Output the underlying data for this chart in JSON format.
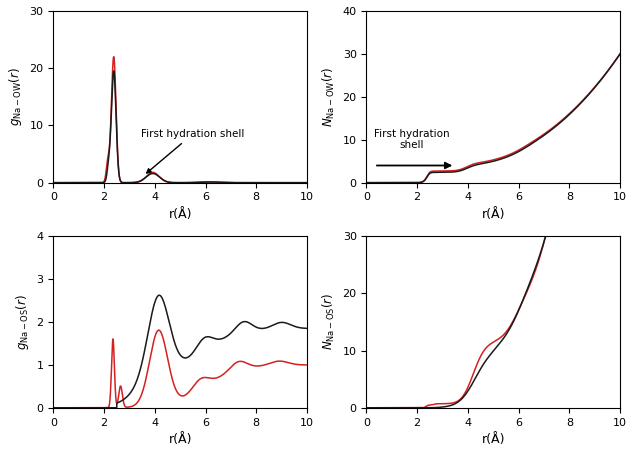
{
  "fig_width": 6.34,
  "fig_height": 4.53,
  "dpi": 100,
  "line_color_red": "#d42020",
  "line_color_black": "#1a1a1a",
  "line_width": 1.1,
  "panels": {
    "top_left": {
      "ylabel": "$g_{\\mathrm{Na-OW}}(r)$",
      "xlabel": "r(Å)",
      "ylim": [
        0,
        30
      ],
      "xlim": [
        0,
        10
      ],
      "yticks": [
        0,
        10,
        20,
        30
      ],
      "xticks": [
        0,
        2,
        4,
        6,
        8,
        10
      ]
    },
    "top_right": {
      "ylabel": "$N_{\\mathrm{Na-OW}}(r)$",
      "xlabel": "r(Å)",
      "ylim": [
        0,
        40
      ],
      "xlim": [
        0,
        10
      ],
      "yticks": [
        0,
        10,
        20,
        30,
        40
      ],
      "xticks": [
        0,
        2,
        4,
        6,
        8,
        10
      ]
    },
    "bot_left": {
      "ylabel": "$g_{\\mathrm{Na-OS}}(r)$",
      "xlabel": "r(Å)",
      "ylim": [
        0,
        4
      ],
      "xlim": [
        0,
        10
      ],
      "yticks": [
        0,
        1,
        2,
        3,
        4
      ],
      "xticks": [
        0,
        2,
        4,
        6,
        8,
        10
      ]
    },
    "bot_right": {
      "ylabel": "$N_{\\mathrm{Na-OS}}(r)$",
      "xlabel": "r(Å)",
      "ylim": [
        0,
        30
      ],
      "xlim": [
        0,
        10
      ],
      "yticks": [
        0,
        10,
        20,
        30
      ],
      "xticks": [
        0,
        2,
        4,
        6,
        8,
        10
      ]
    }
  }
}
